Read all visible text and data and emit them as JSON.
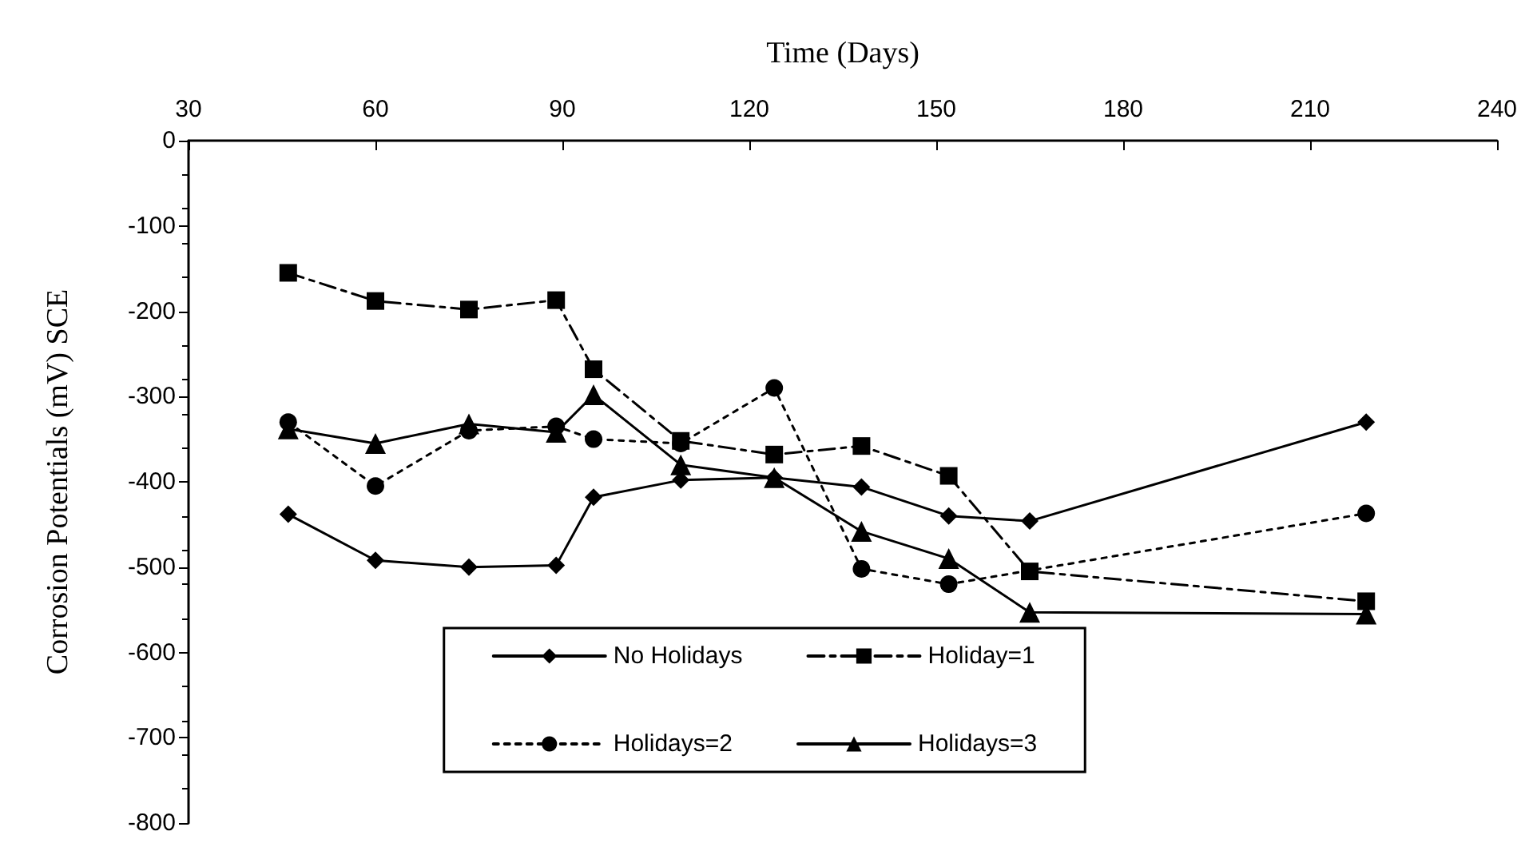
{
  "chart_data": {
    "type": "line",
    "xlabel": "Time (Days)",
    "ylabel": "Corrosion Potentials (mV) SCE",
    "x": [
      46,
      60,
      75,
      89,
      95,
      109,
      124,
      138,
      152,
      165,
      219
    ],
    "xlim": [
      30,
      240
    ],
    "xticks": [
      30,
      60,
      90,
      120,
      150,
      180,
      210,
      240
    ],
    "ylim": [
      -800,
      0
    ],
    "yticks": [
      0,
      -100,
      -200,
      -300,
      -400,
      -500,
      -600,
      -700,
      -800
    ],
    "grid": false,
    "legend": "bottom",
    "series": [
      {
        "name": "No Holidays",
        "color": "#000000",
        "marker": "diamond",
        "line_style": "solid",
        "values": [
          -438,
          -492,
          -500,
          -498,
          -418,
          -398,
          -395,
          -406,
          -440,
          -446,
          -330
        ]
      },
      {
        "name": "Holiday=1",
        "color": "#000000",
        "marker": "square",
        "line_style": "dashed",
        "values": [
          -155,
          -188,
          -198,
          -187,
          -268,
          -352,
          -368,
          -358,
          -393,
          -505,
          -540
        ]
      },
      {
        "name": "Holidays=2",
        "color": "#000000",
        "marker": "circle",
        "line_style": "dotted",
        "values": [
          -330,
          -405,
          -340,
          -335,
          -350,
          -355,
          -290,
          -502,
          -520,
          null,
          -437
        ]
      },
      {
        "name": "Holidays=3",
        "color": "#000000",
        "marker": "triangle",
        "line_style": "solid",
        "values": [
          -338,
          -355,
          -332,
          -342,
          -298,
          -380,
          -395,
          -458,
          -490,
          -553,
          -555
        ]
      }
    ]
  }
}
